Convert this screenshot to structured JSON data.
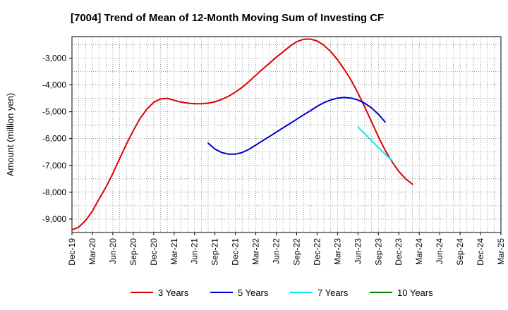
{
  "chart_data": {
    "type": "line",
    "title": "[7004]  Trend of Mean of 12-Month Moving Sum of Investing CF",
    "xlabel": "",
    "ylabel": "Amount (million yen)",
    "ylim": [
      -9500,
      -2200
    ],
    "yticks": [
      -3000,
      -4000,
      -5000,
      -6000,
      -7000,
      -8000,
      -9000
    ],
    "ytick_labels": [
      "-3,000",
      "-4,000",
      "-5,000",
      "-6,000",
      "-7,000",
      "-8,000",
      "-9,000"
    ],
    "x_categories": [
      "Dec-19",
      "Mar-20",
      "Jun-20",
      "Sep-20",
      "Dec-20",
      "Mar-21",
      "Jun-21",
      "Sep-21",
      "Dec-21",
      "Mar-22",
      "Jun-22",
      "Sep-22",
      "Dec-22",
      "Mar-23",
      "Jun-23",
      "Sep-23",
      "Dec-23",
      "Mar-24",
      "Jun-24",
      "Sep-24",
      "Dec-24",
      "Mar-25"
    ],
    "grid": true,
    "legend_position": "bottom",
    "series": [
      {
        "name": "3 Years",
        "color": "#dd0000",
        "values": [
          [
            0,
            -9400
          ],
          [
            0.33,
            -9300
          ],
          [
            0.67,
            -9050
          ],
          [
            1,
            -8700
          ],
          [
            1.33,
            -8250
          ],
          [
            1.67,
            -7800
          ],
          [
            2,
            -7300
          ],
          [
            2.33,
            -6750
          ],
          [
            2.67,
            -6200
          ],
          [
            3,
            -5700
          ],
          [
            3.33,
            -5250
          ],
          [
            3.67,
            -4900
          ],
          [
            4,
            -4650
          ],
          [
            4.33,
            -4520
          ],
          [
            4.67,
            -4500
          ],
          [
            5,
            -4570
          ],
          [
            5.33,
            -4640
          ],
          [
            5.67,
            -4680
          ],
          [
            6,
            -4700
          ],
          [
            6.33,
            -4700
          ],
          [
            6.67,
            -4680
          ],
          [
            7,
            -4630
          ],
          [
            7.33,
            -4540
          ],
          [
            7.67,
            -4420
          ],
          [
            8,
            -4270
          ],
          [
            8.33,
            -4090
          ],
          [
            8.67,
            -3870
          ],
          [
            9,
            -3640
          ],
          [
            9.33,
            -3410
          ],
          [
            9.67,
            -3190
          ],
          [
            10,
            -2970
          ],
          [
            10.33,
            -2770
          ],
          [
            10.67,
            -2560
          ],
          [
            11,
            -2390
          ],
          [
            11.33,
            -2300
          ],
          [
            11.67,
            -2290
          ],
          [
            12,
            -2360
          ],
          [
            12.33,
            -2520
          ],
          [
            12.67,
            -2760
          ],
          [
            13,
            -3060
          ],
          [
            13.33,
            -3420
          ],
          [
            13.67,
            -3830
          ],
          [
            14,
            -4300
          ],
          [
            14.33,
            -4820
          ],
          [
            14.67,
            -5380
          ],
          [
            15,
            -5930
          ],
          [
            15.33,
            -6430
          ],
          [
            15.67,
            -6870
          ],
          [
            16,
            -7220
          ],
          [
            16.33,
            -7500
          ],
          [
            16.67,
            -7700
          ]
        ]
      },
      {
        "name": "5 Years",
        "color": "#0000cc",
        "values": [
          [
            6.67,
            -6170
          ],
          [
            7,
            -6390
          ],
          [
            7.33,
            -6520
          ],
          [
            7.67,
            -6580
          ],
          [
            8,
            -6580
          ],
          [
            8.33,
            -6520
          ],
          [
            8.67,
            -6400
          ],
          [
            9,
            -6240
          ],
          [
            9.33,
            -6080
          ],
          [
            9.67,
            -5920
          ],
          [
            10,
            -5760
          ],
          [
            10.33,
            -5600
          ],
          [
            10.67,
            -5440
          ],
          [
            11,
            -5280
          ],
          [
            11.33,
            -5120
          ],
          [
            11.67,
            -4960
          ],
          [
            12,
            -4800
          ],
          [
            12.33,
            -4660
          ],
          [
            12.67,
            -4560
          ],
          [
            13,
            -4490
          ],
          [
            13.33,
            -4470
          ],
          [
            13.67,
            -4490
          ],
          [
            14,
            -4560
          ],
          [
            14.33,
            -4680
          ],
          [
            14.67,
            -4860
          ],
          [
            15,
            -5090
          ],
          [
            15.33,
            -5380
          ]
        ]
      },
      {
        "name": "7 Years",
        "color": "#00eeee",
        "values": [
          [
            14,
            -5570
          ],
          [
            14.33,
            -5820
          ],
          [
            14.67,
            -6080
          ],
          [
            15,
            -6330
          ],
          [
            15.33,
            -6580
          ],
          [
            15.67,
            -6820
          ]
        ]
      },
      {
        "name": "10 Years",
        "color": "#008000",
        "values": []
      }
    ]
  }
}
